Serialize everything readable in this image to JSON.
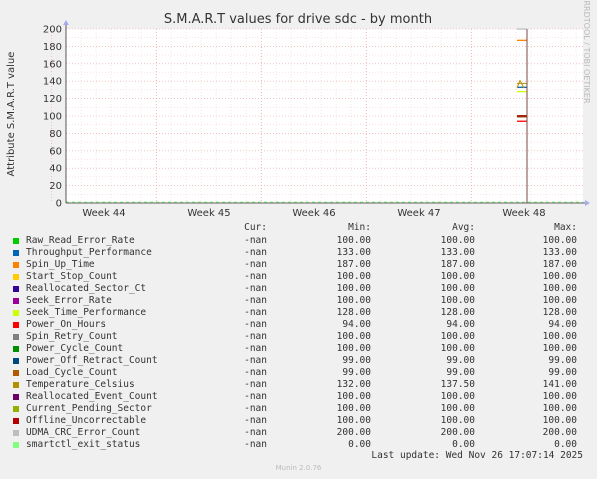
{
  "chart_data": {
    "type": "line",
    "title": "S.M.A.R.T values for drive sdc - by month",
    "ylabel": "Attribute S.M.A.R.T value",
    "xlabel": "",
    "ylim": [
      0,
      200
    ],
    "yticks": [
      "0",
      "20",
      "40",
      "60",
      "80",
      "100",
      "120",
      "140",
      "160",
      "180",
      "200"
    ],
    "xticks": [
      "Week 44",
      "Week 45",
      "Week 46",
      "Week 47",
      "Week 48"
    ],
    "grid": true,
    "series": [
      {
        "name": "Raw_Read_Error_Rate",
        "color": "#00cc00",
        "cur": "-nan",
        "min": "100.00",
        "avg": "100.00",
        "max": "100.00",
        "value": 100
      },
      {
        "name": "Throughput_Performance",
        "color": "#0066b3",
        "cur": "-nan",
        "min": "133.00",
        "avg": "133.00",
        "max": "133.00",
        "value": 133
      },
      {
        "name": "Spin_Up_Time",
        "color": "#ff8000",
        "cur": "-nan",
        "min": "187.00",
        "avg": "187.00",
        "max": "187.00",
        "value": 187
      },
      {
        "name": "Start_Stop_Count",
        "color": "#ffcc00",
        "cur": "-nan",
        "min": "100.00",
        "avg": "100.00",
        "max": "100.00",
        "value": 100
      },
      {
        "name": "Reallocated_Sector_Ct",
        "color": "#330099",
        "cur": "-nan",
        "min": "100.00",
        "avg": "100.00",
        "max": "100.00",
        "value": 100
      },
      {
        "name": "Seek_Error_Rate",
        "color": "#990099",
        "cur": "-nan",
        "min": "100.00",
        "avg": "100.00",
        "max": "100.00",
        "value": 100
      },
      {
        "name": "Seek_Time_Performance",
        "color": "#ccff00",
        "cur": "-nan",
        "min": "128.00",
        "avg": "128.00",
        "max": "128.00",
        "value": 128
      },
      {
        "name": "Power_On_Hours",
        "color": "#ff0000",
        "cur": "-nan",
        "min": "94.00",
        "avg": "94.00",
        "max": "94.00",
        "value": 94
      },
      {
        "name": "Spin_Retry_Count",
        "color": "#808080",
        "cur": "-nan",
        "min": "100.00",
        "avg": "100.00",
        "max": "100.00",
        "value": 100
      },
      {
        "name": "Power_Cycle_Count",
        "color": "#008f00",
        "cur": "-nan",
        "min": "100.00",
        "avg": "100.00",
        "max": "100.00",
        "value": 100
      },
      {
        "name": "Power_Off_Retract_Count",
        "color": "#00487d",
        "cur": "-nan",
        "min": "99.00",
        "avg": "99.00",
        "max": "99.00",
        "value": 99
      },
      {
        "name": "Load_Cycle_Count",
        "color": "#b35a00",
        "cur": "-nan",
        "min": "99.00",
        "avg": "99.00",
        "max": "99.00",
        "value": 99
      },
      {
        "name": "Temperature_Celsius",
        "color": "#b38f00",
        "cur": "-nan",
        "min": "132.00",
        "avg": "137.50",
        "max": "141.00",
        "value": 137.5,
        "vmin": 132,
        "vmax": 141
      },
      {
        "name": "Reallocated_Event_Count",
        "color": "#6b006b",
        "cur": "-nan",
        "min": "100.00",
        "avg": "100.00",
        "max": "100.00",
        "value": 100
      },
      {
        "name": "Current_Pending_Sector",
        "color": "#8fb300",
        "cur": "-nan",
        "min": "100.00",
        "avg": "100.00",
        "max": "100.00",
        "value": 100
      },
      {
        "name": "Offline_Uncorrectable",
        "color": "#b30000",
        "cur": "-nan",
        "min": "100.00",
        "avg": "100.00",
        "max": "100.00",
        "value": 100
      },
      {
        "name": "UDMA_CRC_Error_Count",
        "color": "#bebebe",
        "cur": "-nan",
        "min": "200.00",
        "avg": "200.00",
        "max": "200.00",
        "value": 200
      },
      {
        "name": "smartctl_exit_status",
        "color": "#80ff80",
        "cur": "-nan",
        "min": "0.00",
        "avg": "0.00",
        "max": "0.00",
        "value": 0
      }
    ]
  },
  "legend_headers": {
    "cur": "Cur:",
    "min": "Min:",
    "avg": "Avg:",
    "max": "Max:"
  },
  "side_label": "RRDTOOL / TOBI OETIKER",
  "last_update": "Last update: Wed Nov 26 17:07:14 2025",
  "footer": "Munin 2.0.76"
}
